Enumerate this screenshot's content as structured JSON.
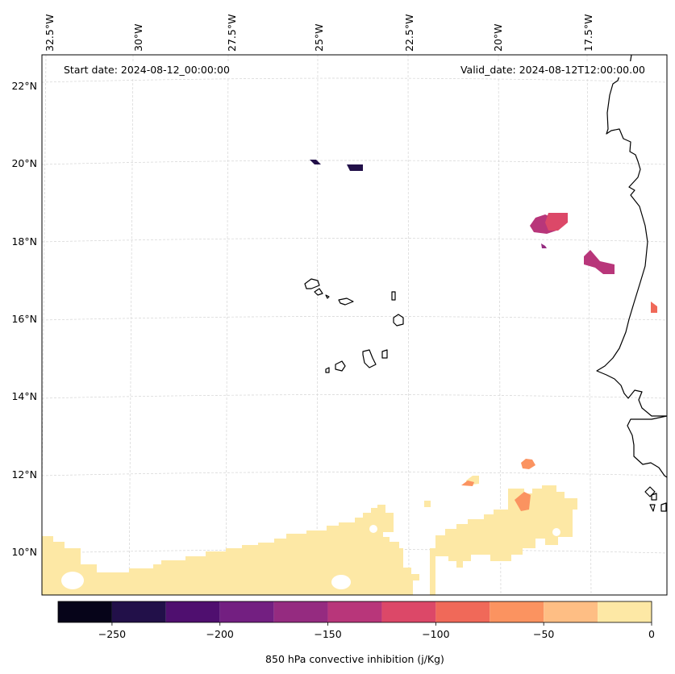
{
  "map": {
    "start_date": "Start date: 2024-08-12_00:00:00",
    "valid_date": "Valid_date: 2024-08-12T12:00:00.00",
    "lon_labels": [
      "32.5°W",
      "30°W",
      "27.5°W",
      "25°W",
      "22.5°W",
      "20°W",
      "17.5°W"
    ],
    "lat_labels": [
      "22°N",
      "20°N",
      "18°N",
      "16°N",
      "14°N",
      "12°N",
      "10°N"
    ],
    "grid": true,
    "coastline_color": "#000000",
    "gridline_color": "#cccccc"
  },
  "colorbar": {
    "label": "850 hPa convective inhibition (j/Kg)",
    "range": [
      -275,
      0
    ],
    "tick_values": [
      -250,
      -200,
      -150,
      -100,
      -50,
      0
    ],
    "tick_labels": [
      "−250",
      "−200",
      "−150",
      "−100",
      "−50",
      "0"
    ],
    "bin_edges": [
      -275,
      -250,
      -225,
      -200,
      -175,
      -150,
      -125,
      -100,
      -75,
      -50,
      -25,
      0
    ],
    "colors": [
      "#060419",
      "#221049",
      "#4f0f6f",
      "#731f81",
      "#952b80",
      "#b8367a",
      "#dc4868",
      "#f06959",
      "#fb9360",
      "#febe84",
      "#fde8a5"
    ]
  }
}
